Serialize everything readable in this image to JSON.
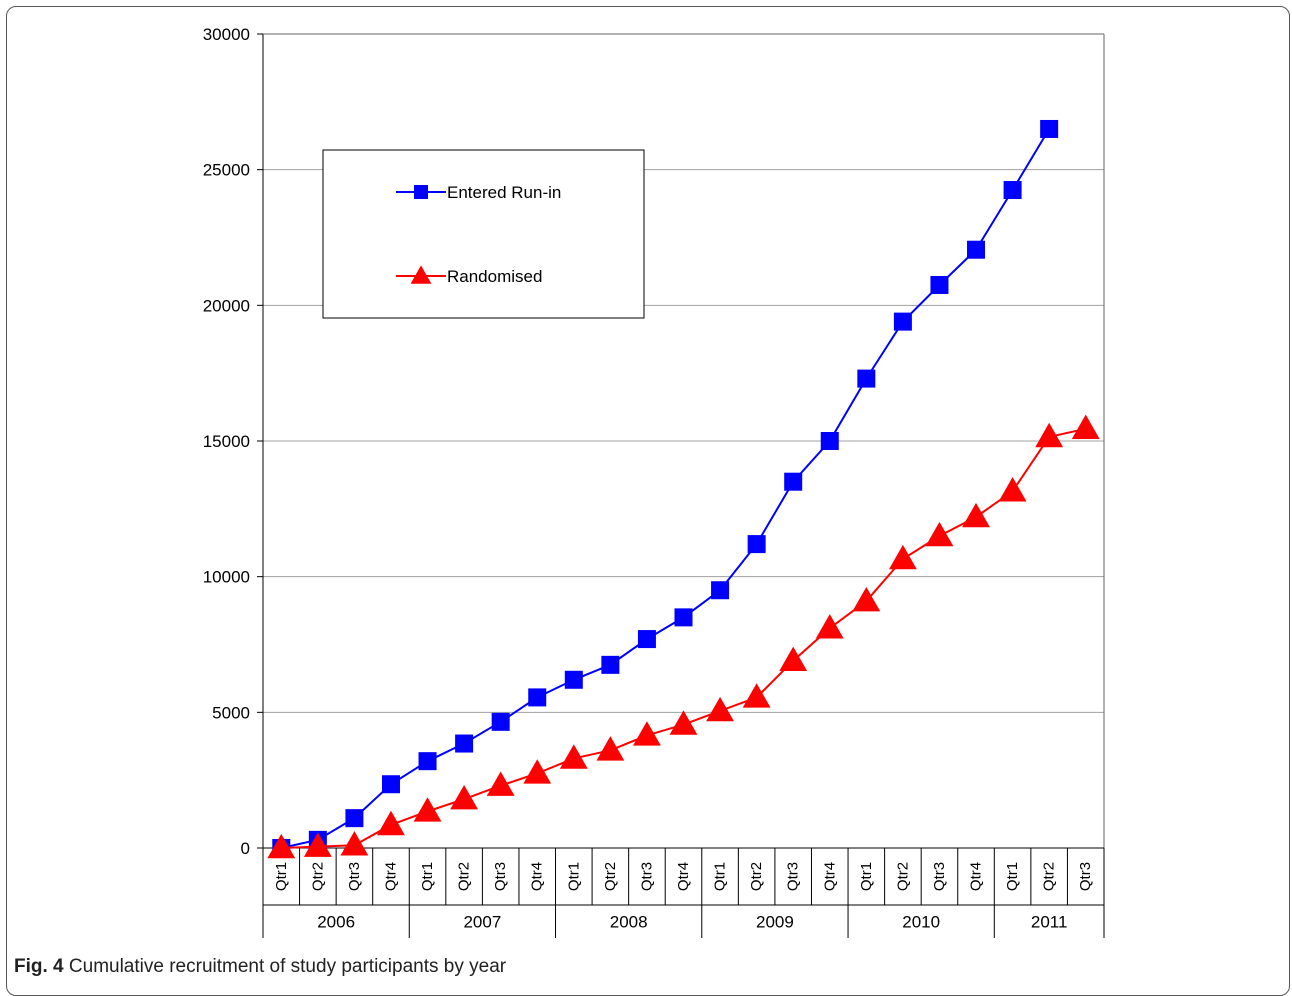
{
  "caption": {
    "label": "Fig. 4",
    "text": "Cumulative recruitment of study participants by year"
  },
  "chart_data": {
    "type": "line",
    "title": "",
    "xlabel": "",
    "ylabel": "",
    "ylim": [
      0,
      30000
    ],
    "yticks": [
      "0",
      "5000",
      "10000",
      "15000",
      "20000",
      "25000",
      "30000"
    ],
    "grid": true,
    "legend_position": "top-left",
    "categories": [
      "Qtr1",
      "Qtr2",
      "Qtr3",
      "Qtr4",
      "Qtr1",
      "Qtr2",
      "Qtr3",
      "Qtr4",
      "Qtr1",
      "Qtr2",
      "Qtr3",
      "Qtr4",
      "Qtr1",
      "Qtr2",
      "Qtr3",
      "Qtr4",
      "Qtr1",
      "Qtr2",
      "Qtr3",
      "Qtr4",
      "Qtr1",
      "Qtr2",
      "Qtr3"
    ],
    "groups": [
      {
        "label": "2006",
        "count": 4
      },
      {
        "label": "2007",
        "count": 4
      },
      {
        "label": "2008",
        "count": 4
      },
      {
        "label": "2009",
        "count": 4
      },
      {
        "label": "2010",
        "count": 4
      },
      {
        "label": "2011",
        "count": 3
      }
    ],
    "series": [
      {
        "name": "Entered Run-in",
        "color": "#0000ff",
        "marker": "square",
        "values": [
          0,
          300,
          1100,
          2350,
          3200,
          3850,
          4650,
          5550,
          6200,
          6750,
          7700,
          8500,
          9500,
          11200,
          13500,
          15000,
          17300,
          19400,
          20750,
          22050,
          24250,
          26500,
          null
        ]
      },
      {
        "name": "Randomised",
        "color": "#ff0000",
        "marker": "triangle",
        "values": [
          0,
          50,
          100,
          850,
          1350,
          1800,
          2300,
          2750,
          3300,
          3600,
          4150,
          4550,
          5050,
          5550,
          6900,
          8100,
          9100,
          10650,
          11500,
          12200,
          13150,
          15150,
          15450
        ]
      }
    ]
  }
}
